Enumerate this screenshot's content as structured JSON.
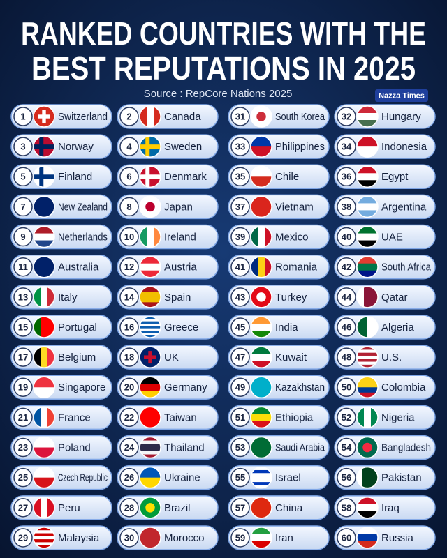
{
  "header": {
    "title_lines": [
      "RANKED COUNTRIES WITH THE",
      "BEST REPUTATIONS IN 2025"
    ],
    "source": "Source : RepCore Nations 2025",
    "badge": "Nazza Times"
  },
  "countries": [
    {
      "rank": 1,
      "name": "Switzerland"
    },
    {
      "rank": 2,
      "name": "Canada"
    },
    {
      "rank": 3,
      "name": "Norway"
    },
    {
      "rank": 4,
      "name": "Sweden"
    },
    {
      "rank": 5,
      "name": "Finland"
    },
    {
      "rank": 6,
      "name": "Denmark"
    },
    {
      "rank": 7,
      "name": "New Zealand"
    },
    {
      "rank": 8,
      "name": "Japan"
    },
    {
      "rank": 9,
      "name": "Netherlands"
    },
    {
      "rank": 10,
      "name": "Ireland"
    },
    {
      "rank": 11,
      "name": "Australia"
    },
    {
      "rank": 12,
      "name": "Austria"
    },
    {
      "rank": 13,
      "name": "Italy"
    },
    {
      "rank": 14,
      "name": "Spain"
    },
    {
      "rank": 15,
      "name": "Portugal"
    },
    {
      "rank": 16,
      "name": "Greece"
    },
    {
      "rank": 17,
      "name": "Belgium"
    },
    {
      "rank": 18,
      "name": "UK"
    },
    {
      "rank": 19,
      "name": "Singapore"
    },
    {
      "rank": 20,
      "name": "Germany"
    },
    {
      "rank": 21,
      "name": "France"
    },
    {
      "rank": 22,
      "name": "Taiwan"
    },
    {
      "rank": 23,
      "name": "Poland"
    },
    {
      "rank": 24,
      "name": "Thailand"
    },
    {
      "rank": 25,
      "name": "Czech Republic"
    },
    {
      "rank": 26,
      "name": "Ukraine"
    },
    {
      "rank": 27,
      "name": "Peru"
    },
    {
      "rank": 28,
      "name": "Brazil"
    },
    {
      "rank": 29,
      "name": "Malaysia"
    },
    {
      "rank": 30,
      "name": "Morocco"
    },
    {
      "rank": 31,
      "name": "South Korea"
    },
    {
      "rank": 32,
      "name": "Hungary"
    },
    {
      "rank": 33,
      "name": "Philippines"
    },
    {
      "rank": 34,
      "name": "Indonesia"
    },
    {
      "rank": 35,
      "name": "Chile"
    },
    {
      "rank": 36,
      "name": "Egypt"
    },
    {
      "rank": 37,
      "name": "Vietnam"
    },
    {
      "rank": 38,
      "name": "Argentina"
    },
    {
      "rank": 39,
      "name": "Mexico"
    },
    {
      "rank": 40,
      "name": "UAE"
    },
    {
      "rank": 41,
      "name": "Romania"
    },
    {
      "rank": 42,
      "name": "South Africa"
    },
    {
      "rank": 43,
      "name": "Turkey"
    },
    {
      "rank": 44,
      "name": "Qatar"
    },
    {
      "rank": 45,
      "name": "India"
    },
    {
      "rank": 46,
      "name": "Algeria"
    },
    {
      "rank": 47,
      "name": "Kuwait"
    },
    {
      "rank": 48,
      "name": "U.S."
    },
    {
      "rank": 49,
      "name": "Kazakhstan"
    },
    {
      "rank": 50,
      "name": "Colombia"
    },
    {
      "rank": 51,
      "name": "Ethiopia"
    },
    {
      "rank": 52,
      "name": "Nigeria"
    },
    {
      "rank": 53,
      "name": "Saudi Arabia"
    },
    {
      "rank": 54,
      "name": "Bangladesh"
    },
    {
      "rank": 55,
      "name": "Israel"
    },
    {
      "rank": 56,
      "name": "Pakistan"
    },
    {
      "rank": 57,
      "name": "China"
    },
    {
      "rank": 58,
      "name": "Iraq"
    },
    {
      "rank": 59,
      "name": "Iran"
    },
    {
      "rank": 60,
      "name": "Russia"
    }
  ]
}
